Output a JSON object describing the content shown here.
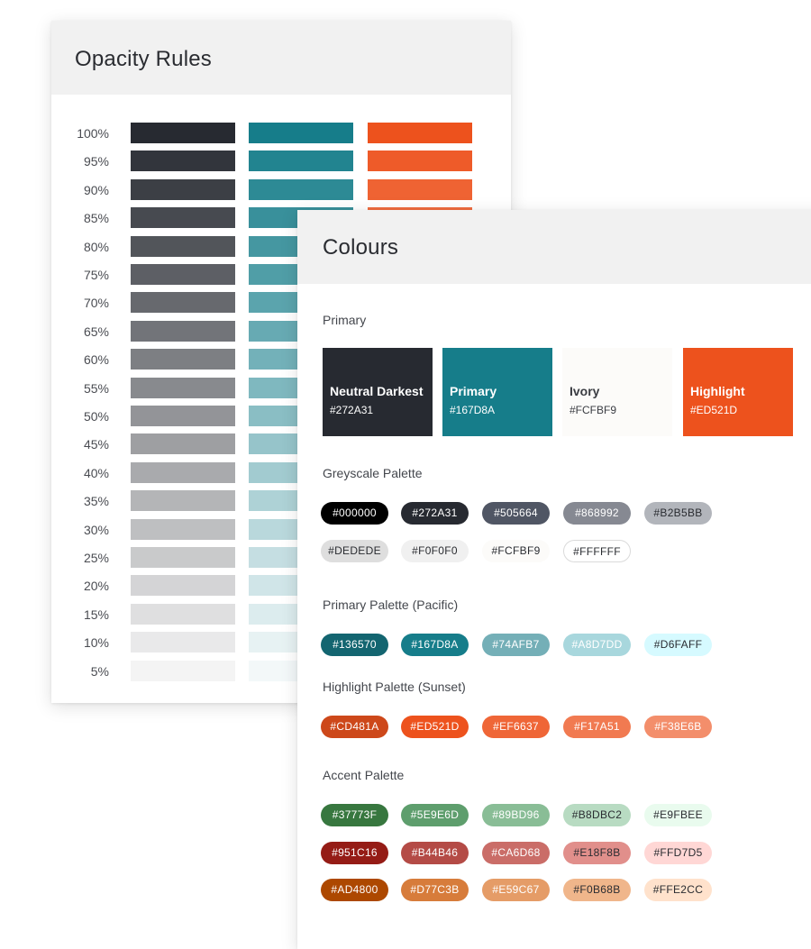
{
  "opacity": {
    "title": "Opacity Rules",
    "base_colors": [
      "#272A31",
      "#167D8A",
      "#ED521D"
    ],
    "rows": [
      {
        "label": "100%",
        "value": 1.0
      },
      {
        "label": "95%",
        "value": 0.95
      },
      {
        "label": "90%",
        "value": 0.9
      },
      {
        "label": "85%",
        "value": 0.85
      },
      {
        "label": "80%",
        "value": 0.8
      },
      {
        "label": "75%",
        "value": 0.75
      },
      {
        "label": "70%",
        "value": 0.7
      },
      {
        "label": "65%",
        "value": 0.65
      },
      {
        "label": "60%",
        "value": 0.6
      },
      {
        "label": "55%",
        "value": 0.55
      },
      {
        "label": "50%",
        "value": 0.5
      },
      {
        "label": "45%",
        "value": 0.45
      },
      {
        "label": "40%",
        "value": 0.4
      },
      {
        "label": "35%",
        "value": 0.35
      },
      {
        "label": "30%",
        "value": 0.3
      },
      {
        "label": "25%",
        "value": 0.25
      },
      {
        "label": "20%",
        "value": 0.2
      },
      {
        "label": "15%",
        "value": 0.15
      },
      {
        "label": "10%",
        "value": 0.1
      },
      {
        "label": "5%",
        "value": 0.05
      }
    ]
  },
  "colours": {
    "title": "Colours",
    "primary_label": "Primary",
    "primary_swatches": [
      {
        "name": "Neutral Darkest",
        "hex": "#272A31",
        "bg": "#272A31",
        "fg": "#FFFFFF"
      },
      {
        "name": "Primary",
        "hex": "#167D8A",
        "bg": "#167D8A",
        "fg": "#FFFFFF"
      },
      {
        "name": "Ivory",
        "hex": "#FCFBF9",
        "bg": "#FCFBF9",
        "fg": "#3A3C42"
      },
      {
        "name": "Highlight",
        "hex": "#ED521D",
        "bg": "#ED521D",
        "fg": "#FFFFFF"
      }
    ],
    "palettes": [
      {
        "label": "Greyscale Palette",
        "rows": [
          [
            {
              "hex": "#000000",
              "bg": "#000000",
              "fg": "#FFFFFF"
            },
            {
              "hex": "#272A31",
              "bg": "#272A31",
              "fg": "#FFFFFF"
            },
            {
              "hex": "#505664",
              "bg": "#505664",
              "fg": "#FFFFFF"
            },
            {
              "hex": "#868992",
              "bg": "#868992",
              "fg": "#FFFFFF"
            },
            {
              "hex": "#B2B5BB",
              "bg": "#B2B5BB",
              "fg": "#2A2C31"
            }
          ],
          [
            {
              "hex": "#DEDEDE",
              "bg": "#DEDEDE",
              "fg": "#2A2C31"
            },
            {
              "hex": "#F0F0F0",
              "bg": "#F0F0F0",
              "fg": "#2A2C31"
            },
            {
              "hex": "#FCFBF9",
              "bg": "#FCFBF9",
              "fg": "#2A2C31"
            },
            {
              "hex": "#FFFFFF",
              "bg": "#FFFFFF",
              "fg": "#2A2C31",
              "border": "#DADADA"
            }
          ]
        ]
      },
      {
        "label": "Primary Palette (Pacific)",
        "rows": [
          [
            {
              "hex": "#136570",
              "bg": "#136570",
              "fg": "#FFFFFF"
            },
            {
              "hex": "#167D8A",
              "bg": "#167D8A",
              "fg": "#FFFFFF"
            },
            {
              "hex": "#74AFB7",
              "bg": "#74AFB7",
              "fg": "#FFFFFF"
            },
            {
              "hex": "#A8D7DD",
              "bg": "#A8D7DD",
              "fg": "#FFFFFF"
            },
            {
              "hex": "#D6FAFF",
              "bg": "#D6FAFF",
              "fg": "#2A2C31"
            }
          ]
        ]
      },
      {
        "label": "Highlight Palette (Sunset)",
        "rows": [
          [
            {
              "hex": "#CD481A",
              "bg": "#CD481A",
              "fg": "#FFFFFF"
            },
            {
              "hex": "#ED521D",
              "bg": "#ED521D",
              "fg": "#FFFFFF"
            },
            {
              "hex": "#EF6637",
              "bg": "#EF6637",
              "fg": "#FFFFFF"
            },
            {
              "hex": "#F17A51",
              "bg": "#F17A51",
              "fg": "#FFFFFF"
            },
            {
              "hex": "#F38E6B",
              "bg": "#F38E6B",
              "fg": "#FFFFFF"
            }
          ]
        ]
      },
      {
        "label": "Accent Palette",
        "rows": [
          [
            {
              "hex": "#37773F",
              "bg": "#37773F",
              "fg": "#FFFFFF"
            },
            {
              "hex": "#5E9E6D",
              "bg": "#5E9E6D",
              "fg": "#FFFFFF"
            },
            {
              "hex": "#89BD96",
              "bg": "#89BD96",
              "fg": "#FFFFFF"
            },
            {
              "hex": "#B8DBC2",
              "bg": "#B8DBC2",
              "fg": "#2A2C31"
            },
            {
              "hex": "#E9FBEE",
              "bg": "#E9FBEE",
              "fg": "#2A2C31"
            }
          ],
          [
            {
              "hex": "#951C16",
              "bg": "#951C16",
              "fg": "#FFFFFF"
            },
            {
              "hex": "#B44B46",
              "bg": "#B44B46",
              "fg": "#FFFFFF"
            },
            {
              "hex": "#CA6D68",
              "bg": "#CA6D68",
              "fg": "#FFFFFF"
            },
            {
              "hex": "#E18F8B",
              "bg": "#E18F8B",
              "fg": "#2A2C31"
            },
            {
              "hex": "#FFD7D5",
              "bg": "#FFD7D5",
              "fg": "#2A2C31"
            }
          ],
          [
            {
              "hex": "#AD4800",
              "bg": "#AD4800",
              "fg": "#FFFFFF"
            },
            {
              "hex": "#D77C3B",
              "bg": "#D77C3B",
              "fg": "#FFFFFF"
            },
            {
              "hex": "#E59C67",
              "bg": "#E59C67",
              "fg": "#FFFFFF"
            },
            {
              "hex": "#F0B68B",
              "bg": "#F0B68B",
              "fg": "#2A2C31"
            },
            {
              "hex": "#FFE2CC",
              "bg": "#FFE2CC",
              "fg": "#2A2C31"
            }
          ]
        ]
      }
    ]
  }
}
